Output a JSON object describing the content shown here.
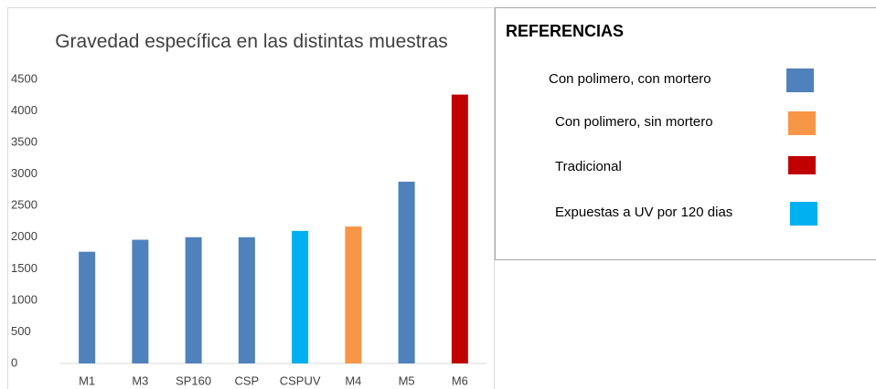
{
  "chart_data": {
    "type": "bar",
    "title": "Gravedad específica en las distintas muestras",
    "categories": [
      "M1",
      "M3",
      "SP160",
      "CSP",
      "CSPUV",
      "M4",
      "M5",
      "M6"
    ],
    "values": [
      1770,
      1960,
      2000,
      2000,
      2100,
      2170,
      2880,
      4260
    ],
    "colors": [
      "#4f81bd",
      "#4f81bd",
      "#4f81bd",
      "#4f81bd",
      "#00b0f0",
      "#f79646",
      "#4f81bd",
      "#c00000"
    ],
    "ylim": [
      0,
      4500
    ],
    "yticks": [
      0,
      500,
      1000,
      1500,
      2000,
      2500,
      3000,
      3500,
      4000,
      4500
    ],
    "grid": false,
    "legend": {
      "title": "REFERENCIAS",
      "items": [
        {
          "label": "Con polimero, con mortero",
          "color": "#4f81bd"
        },
        {
          "label": "Con polimero, sin mortero",
          "color": "#f79646"
        },
        {
          "label": "Tradicional",
          "color": "#c00000"
        },
        {
          "label": "Expuestas a UV por 120 dias",
          "color": "#00b0f0"
        }
      ]
    }
  }
}
